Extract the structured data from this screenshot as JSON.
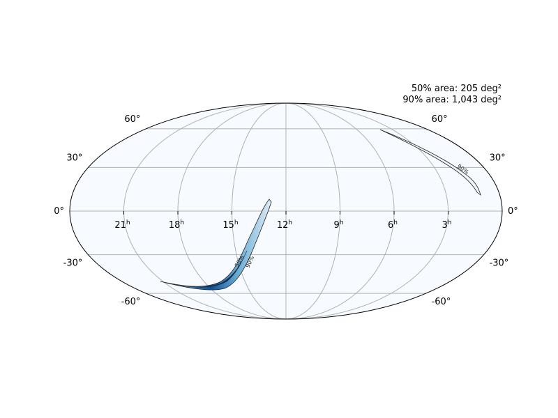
{
  "map": {
    "projection": "mollweide",
    "annotations": [
      "50% area: 205 deg²",
      "90% area: 1,043 deg²"
    ],
    "ra_ticks": [
      {
        "value": 21,
        "label": "21",
        "unit": "h"
      },
      {
        "value": 18,
        "label": "18",
        "unit": "h"
      },
      {
        "value": 15,
        "label": "15",
        "unit": "h"
      },
      {
        "value": 12,
        "label": "12",
        "unit": "h"
      },
      {
        "value": 9,
        "label": "9",
        "unit": "h"
      },
      {
        "value": 6,
        "label": "6",
        "unit": "h"
      },
      {
        "value": 3,
        "label": "3",
        "unit": "h"
      }
    ],
    "dec_ticks": [
      {
        "value": 60,
        "label": "60°"
      },
      {
        "value": 30,
        "label": "30°"
      },
      {
        "value": 0,
        "label": "0°"
      },
      {
        "value": -30,
        "label": "-30°"
      },
      {
        "value": -60,
        "label": "-60°"
      }
    ],
    "contour_labels": [
      "50%",
      "90%"
    ],
    "grid": true
  }
}
